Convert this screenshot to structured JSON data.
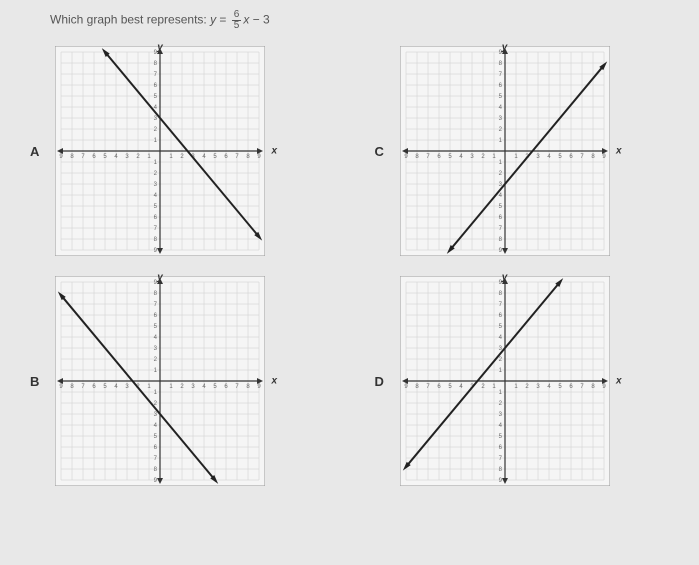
{
  "question_prefix": "Which graph best represents: ",
  "equation_lhs": "y",
  "equation_eq": " = ",
  "fraction_num": "6",
  "fraction_den": "5",
  "equation_var": "x",
  "equation_rest": " − 3",
  "labels": {
    "A": "A",
    "B": "B",
    "C": "C",
    "D": "D"
  },
  "axis": {
    "x": "x",
    "y": "y"
  },
  "graph_style": {
    "size": 210,
    "grid_color": "#cccccc",
    "axis_color": "#333333",
    "line_color": "#222222",
    "bg_color": "#f5f5f5",
    "domain": [
      -9,
      9
    ],
    "line_width": 2,
    "tick_fontsize": 6,
    "tick_color": "#666666"
  },
  "graphs": {
    "A": {
      "slope": -1.2,
      "intercept": 3
    },
    "B": {
      "slope": -1.2,
      "intercept": -3
    },
    "C": {
      "slope": 1.2,
      "intercept": -3
    },
    "D": {
      "slope": 1.2,
      "intercept": 3
    }
  }
}
